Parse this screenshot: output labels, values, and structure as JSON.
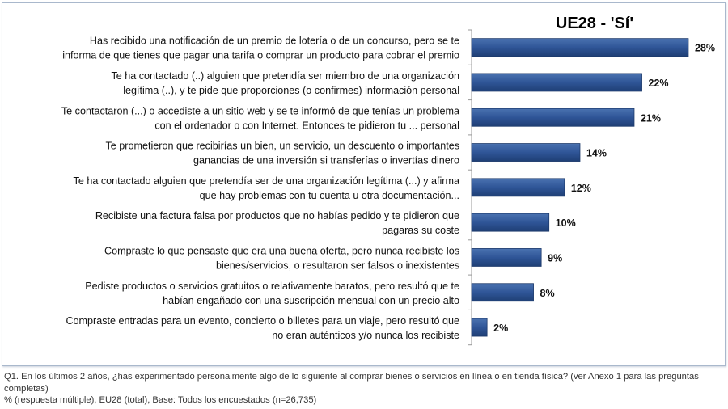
{
  "chart_data": {
    "type": "bar",
    "orientation": "horizontal",
    "title": "UE28 - 'Sí'",
    "categories": [
      [
        "Has recibido una notificación de un premio de lotería o de un concurso, pero se te",
        "informa de que tienes que pagar una tarifa o comprar un producto para cobrar el premio"
      ],
      [
        "Te ha contactado (..) alguien que pretendía ser miembro de una organización",
        "legítima (..), y te pide que proporciones (o confirmes) información personal"
      ],
      [
        "Te contactaron (...) o accediste a un sitio web y se te informó de que tenías un problema",
        "con el ordenador o con Internet. Entonces te pidieron tu ... personal"
      ],
      [
        "Te prometieron que recibirías un bien, un servicio, un descuento o importantes",
        "ganancias de una inversión si transferías o invertías dinero"
      ],
      [
        "Te ha contactado alguien que pretendía ser de una organización legítima (...) y afirma",
        "que hay problemas con tu cuenta u otra documentación..."
      ],
      [
        "Recibiste una factura falsa por productos que no habías pedido y te pidieron que",
        "pagaras su coste"
      ],
      [
        "Compraste lo que pensaste que era una buena oferta, pero nunca recibiste los",
        "bienes/servicios, o resultaron ser falsos o inexistentes"
      ],
      [
        "Pediste productos o servicios gratuitos o relativamente baratos, pero resultó que te",
        "habían engañado con una suscripción mensual con un precio alto"
      ],
      [
        "Compraste entradas para un evento, concierto o billetes para un viaje, pero resultó que",
        "no eran auténticos y/o nunca los recibiste"
      ]
    ],
    "values": [
      28,
      22,
      21,
      14,
      12,
      10,
      9,
      8,
      2
    ],
    "value_labels": [
      "28%",
      "22%",
      "21%",
      "14%",
      "12%",
      "10%",
      "9%",
      "8%",
      "2%"
    ],
    "xlim": [
      0,
      30
    ],
    "grid": false,
    "bar_color": "#2f5597"
  },
  "footnote": {
    "line1": "Q1. En los últimos 2 años, ¿has experimentado personalmente algo de lo siguiente al comprar bienes o servicios en línea o en tienda física? (ver Anexo 1 para las preguntas completas)",
    "line2": "% (respuesta múltiple), EU28 (total), Base: Todos los encuestados (n=26,735)"
  }
}
